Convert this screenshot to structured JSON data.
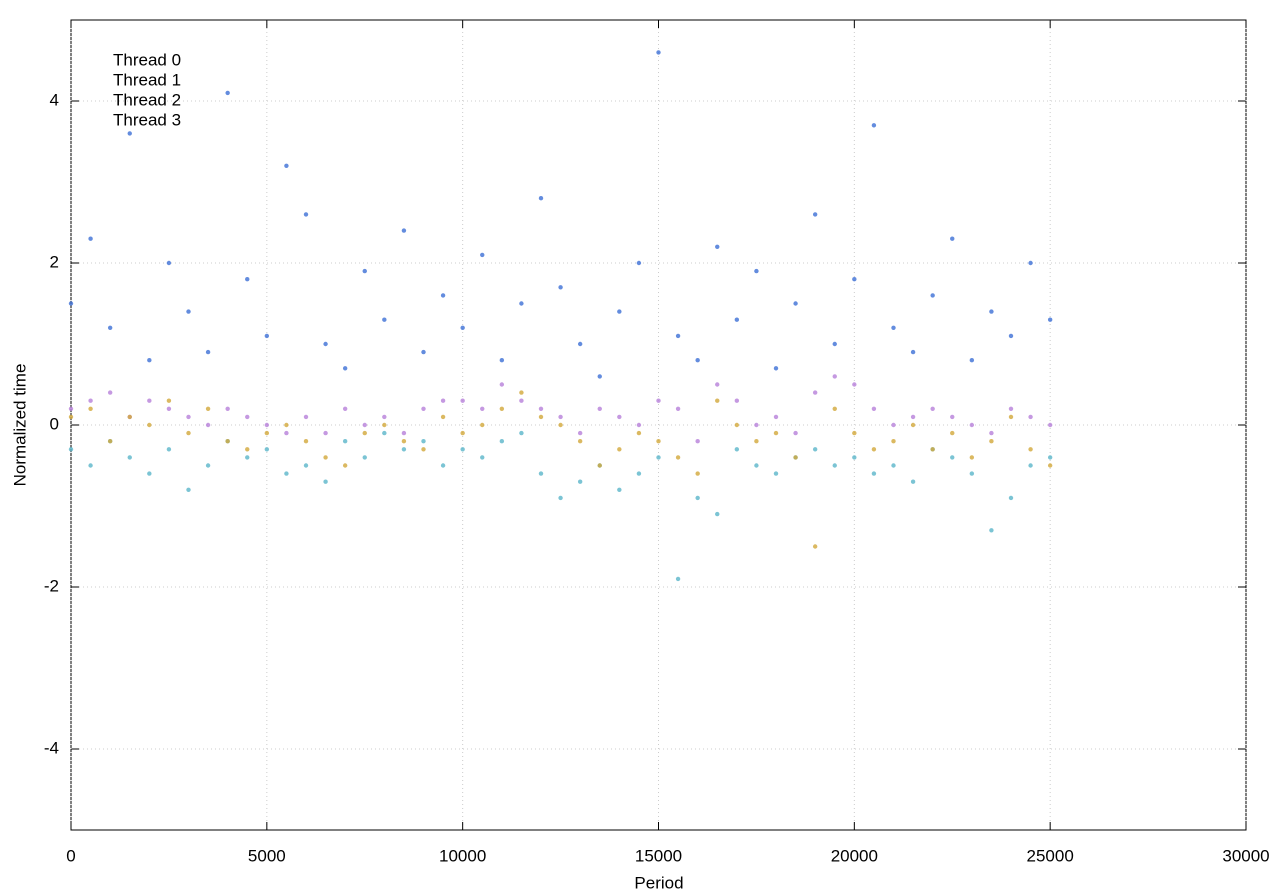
{
  "chart_data": {
    "type": "scatter",
    "x_label": "Period",
    "y_label": "Normalized time",
    "x": [
      0,
      500,
      1000,
      1500,
      2000,
      2500,
      3000,
      3500,
      4000,
      4500,
      5000,
      5500,
      6000,
      6500,
      7000,
      7500,
      8000,
      8500,
      9000,
      9500,
      10000,
      10500,
      11000,
      11500,
      12000,
      12500,
      13000,
      13500,
      14000,
      14500,
      15000,
      15500,
      16000,
      16500,
      17000,
      17500,
      18000,
      18500,
      19000,
      19500,
      20000,
      20500,
      21000,
      21500,
      22000,
      22500,
      23000,
      23500,
      24000,
      24500,
      25000
    ],
    "series": [
      {
        "name": "Thread 0",
        "color": "#b77fd9",
        "values": [
          0.2,
          0.3,
          0.4,
          0.1,
          0.3,
          0.2,
          0.1,
          0.0,
          0.2,
          0.1,
          0.0,
          -0.1,
          0.1,
          -0.1,
          0.2,
          0.0,
          0.1,
          -0.1,
          0.2,
          0.3,
          0.3,
          0.2,
          0.5,
          0.3,
          0.2,
          0.1,
          -0.1,
          0.2,
          0.1,
          0.0,
          0.3,
          0.2,
          -0.2,
          0.5,
          0.3,
          0.0,
          0.1,
          -0.1,
          0.4,
          0.6,
          0.5,
          0.2,
          0.0,
          0.1,
          0.2,
          0.1,
          0.0,
          -0.1,
          0.2,
          0.1,
          0.0
        ]
      },
      {
        "name": "Thread 1",
        "color": "#3c6fd6",
        "values": [
          1.5,
          2.3,
          1.2,
          3.6,
          0.8,
          2.0,
          1.4,
          0.9,
          4.1,
          1.8,
          1.1,
          3.2,
          2.6,
          1.0,
          0.7,
          1.9,
          1.3,
          2.4,
          0.9,
          1.6,
          1.2,
          2.1,
          0.8,
          1.5,
          2.8,
          1.7,
          1.0,
          0.6,
          1.4,
          2.0,
          4.6,
          1.1,
          0.8,
          2.2,
          1.3,
          1.9,
          0.7,
          1.5,
          2.6,
          1.0,
          1.8,
          3.7,
          1.2,
          0.9,
          1.6,
          2.3,
          0.8,
          1.4,
          1.1,
          2.0,
          1.3
        ]
      },
      {
        "name": "Thread 2",
        "color": "#5ab5c9",
        "values": [
          -0.3,
          -0.5,
          -0.2,
          -0.4,
          -0.6,
          -0.3,
          -0.8,
          -0.5,
          -0.2,
          -0.4,
          -0.3,
          -0.6,
          -0.5,
          -0.7,
          -0.2,
          -0.4,
          -0.1,
          -0.3,
          -0.2,
          -0.5,
          -0.3,
          -0.4,
          -0.2,
          -0.1,
          -0.6,
          -0.9,
          -0.7,
          -0.5,
          -0.8,
          -0.6,
          -0.4,
          -1.9,
          -0.9,
          -1.1,
          -0.3,
          -0.5,
          -0.6,
          -0.4,
          -0.3,
          -0.5,
          -0.4,
          -0.6,
          -0.5,
          -0.7,
          -0.3,
          -0.4,
          -0.6,
          -1.3,
          -0.9,
          -0.5,
          -0.4
        ]
      },
      {
        "name": "Thread 3",
        "color": "#d2a73a",
        "values": [
          0.1,
          0.2,
          -0.2,
          0.1,
          0.0,
          0.3,
          -0.1,
          0.2,
          -0.2,
          -0.3,
          -0.1,
          0.0,
          -0.2,
          -0.4,
          -0.5,
          -0.1,
          0.0,
          -0.2,
          -0.3,
          0.1,
          -0.1,
          0.0,
          0.2,
          0.4,
          0.1,
          0.0,
          -0.2,
          -0.5,
          -0.3,
          -0.1,
          -0.2,
          -0.4,
          -0.6,
          0.3,
          0.0,
          -0.2,
          -0.1,
          -0.4,
          -1.5,
          0.2,
          -0.1,
          -0.3,
          -0.2,
          0.0,
          -0.3,
          -0.1,
          -0.4,
          -0.2,
          0.1,
          -0.3,
          -0.5
        ]
      }
    ],
    "xlim": [
      0,
      30000
    ],
    "xticks": [
      0,
      5000,
      10000,
      15000,
      20000,
      25000,
      30000
    ],
    "ylim": [
      -5,
      5
    ],
    "yticks": [
      -4,
      -2,
      0,
      2,
      4
    ],
    "grid": true,
    "legend": "top-left"
  }
}
